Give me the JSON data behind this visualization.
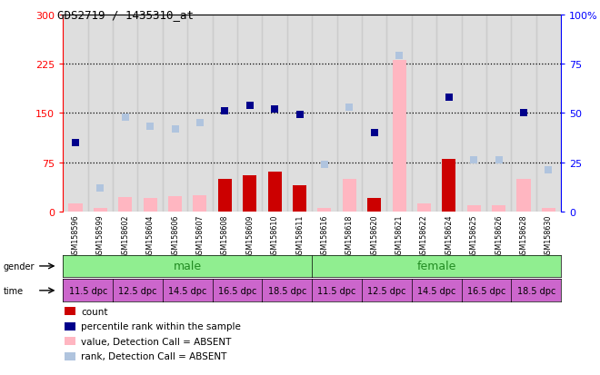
{
  "title": "GDS2719 / 1435310_at",
  "samples": [
    "GSM158596",
    "GSM158599",
    "GSM158602",
    "GSM158604",
    "GSM158606",
    "GSM158607",
    "GSM158608",
    "GSM158609",
    "GSM158610",
    "GSM158611",
    "GSM158616",
    "GSM158618",
    "GSM158620",
    "GSM158621",
    "GSM158622",
    "GSM158624",
    "GSM158625",
    "GSM158626",
    "GSM158628",
    "GSM158630"
  ],
  "count_present": [
    0,
    0,
    0,
    0,
    0,
    0,
    50,
    55,
    60,
    40,
    0,
    0,
    20,
    0,
    0,
    80,
    0,
    0,
    0,
    0
  ],
  "count_absent": [
    12,
    5,
    22,
    20,
    24,
    25,
    0,
    0,
    0,
    0,
    5,
    50,
    0,
    230,
    12,
    0,
    10,
    10,
    50,
    5
  ],
  "rank_present": [
    35,
    0,
    0,
    0,
    0,
    0,
    51,
    54,
    52,
    49,
    0,
    0,
    40,
    0,
    0,
    58,
    0,
    0,
    50,
    0
  ],
  "rank_absent": [
    0,
    12,
    48,
    43,
    42,
    45,
    0,
    0,
    0,
    0,
    24,
    53,
    0,
    79,
    0,
    0,
    26,
    26,
    0,
    21
  ],
  "ylim_left": [
    0,
    300
  ],
  "ylim_right": [
    0,
    100
  ],
  "yticks_left": [
    0,
    75,
    150,
    225,
    300
  ],
  "yticks_right": [
    0,
    25,
    50,
    75,
    100
  ],
  "bar_present_color": "#CC0000",
  "bar_absent_color": "#FFB6C1",
  "dot_present_color": "#00008B",
  "dot_absent_color": "#B0C4DE",
  "male_color": "#90EE90",
  "female_color": "#90EE90",
  "text_green": "#228B22",
  "time_color": "#CC66CC",
  "left_axis_color": "red",
  "right_axis_color": "blue",
  "legend_items": [
    {
      "color": "#CC0000",
      "label": "count"
    },
    {
      "color": "#00008B",
      "label": "percentile rank within the sample"
    },
    {
      "color": "#FFB6C1",
      "label": "value, Detection Call = ABSENT"
    },
    {
      "color": "#B0C4DE",
      "label": "rank, Detection Call = ABSENT"
    }
  ],
  "time_labels": [
    "11.5 dpc",
    "12.5 dpc",
    "14.5 dpc",
    "16.5 dpc",
    "18.5 dpc",
    "11.5 dpc",
    "12.5 dpc",
    "14.5 dpc",
    "16.5 dpc",
    "18.5 dpc"
  ],
  "col_bg_color": "#C8C8C8"
}
